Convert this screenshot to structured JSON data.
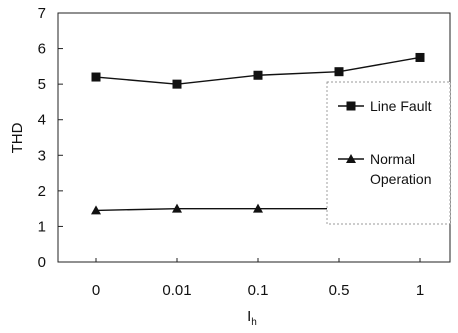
{
  "chart_data": {
    "type": "line",
    "categories": [
      "0",
      "0.01",
      "0.1",
      "0.5",
      "1"
    ],
    "series": [
      {
        "name": "Line Fault",
        "values": [
          5.2,
          5.0,
          5.25,
          5.35,
          5.75
        ],
        "marker": "square"
      },
      {
        "name": "Normal\nOperation",
        "values": [
          1.45,
          1.5,
          1.5,
          1.5,
          1.48
        ],
        "marker": "triangle"
      }
    ],
    "ylim": [
      0,
      7
    ],
    "yticks": [
      "0",
      "1",
      "2",
      "3",
      "4",
      "5",
      "6",
      "7"
    ],
    "xlabel": "I",
    "xlabel_subscript": "h",
    "ylabel": "THD",
    "legend_position": "right",
    "grid": false
  }
}
